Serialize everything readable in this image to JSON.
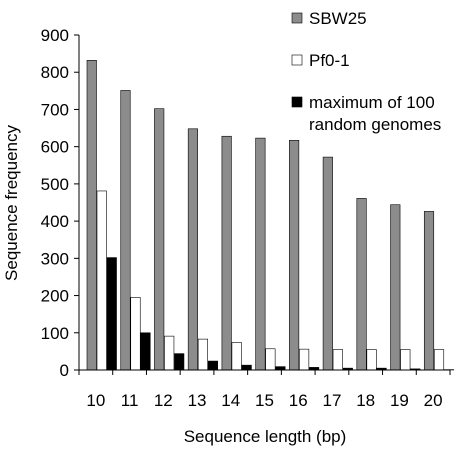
{
  "chart_data": {
    "type": "bar",
    "title": "",
    "xlabel": "Sequence length (bp)",
    "ylabel": "Sequence frequency",
    "ylim": [
      0,
      900
    ],
    "yticks": [
      0,
      100,
      200,
      300,
      400,
      500,
      600,
      700,
      800,
      900
    ],
    "categories": [
      "10",
      "11",
      "12",
      "13",
      "14",
      "15",
      "16",
      "17",
      "18",
      "19",
      "20"
    ],
    "series": [
      {
        "name": "SBW25",
        "color": "#8c8c8c",
        "values": [
          832,
          751,
          702,
          648,
          628,
          623,
          617,
          572,
          461,
          444,
          426
        ]
      },
      {
        "name": "Pf0-1",
        "color": "#ffffff",
        "values": [
          481,
          195,
          91,
          83,
          74,
          57,
          56,
          55,
          55,
          55,
          55
        ]
      },
      {
        "name": "maximum of 100 random genomes",
        "color": "#000000",
        "values": [
          302,
          100,
          44,
          24,
          13,
          9,
          7,
          5,
          5,
          3,
          1
        ]
      }
    ],
    "legend": {
      "placement": "top-right",
      "entries": [
        {
          "lines": [
            "SBW25"
          ]
        },
        {
          "lines": [
            "Pf0-1"
          ]
        },
        {
          "lines": [
            "maximum of 100",
            "random genomes"
          ]
        }
      ]
    },
    "grid": false
  }
}
